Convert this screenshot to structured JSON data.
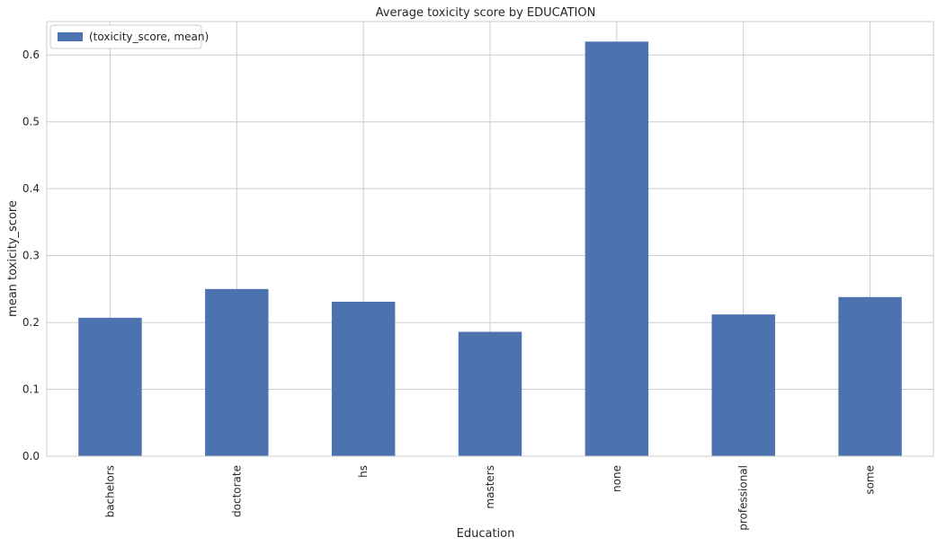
{
  "chart_data": {
    "type": "bar",
    "title": "Average toxicity score by EDUCATION",
    "xlabel": "Education",
    "ylabel": "mean toxicity_score",
    "categories": [
      "bachelors",
      "doctorate",
      "hs",
      "masters",
      "none",
      "professional",
      "some"
    ],
    "series": [
      {
        "name": "(toxicity_score, mean)",
        "values": [
          0.207,
          0.25,
          0.231,
          0.186,
          0.62,
          0.212,
          0.238
        ]
      }
    ],
    "ylim": [
      0,
      0.65
    ],
    "yticks": [
      0.0,
      0.1,
      0.2,
      0.3,
      0.4,
      0.5,
      0.6
    ],
    "ytick_labels": [
      "0.0",
      "0.1",
      "0.2",
      "0.3",
      "0.4",
      "0.5",
      "0.6"
    ],
    "grid": true,
    "legend_position": "top-left",
    "colors": {
      "bar": "#4c72b0",
      "grid": "#cccccc",
      "frame": "#cccccc"
    }
  }
}
